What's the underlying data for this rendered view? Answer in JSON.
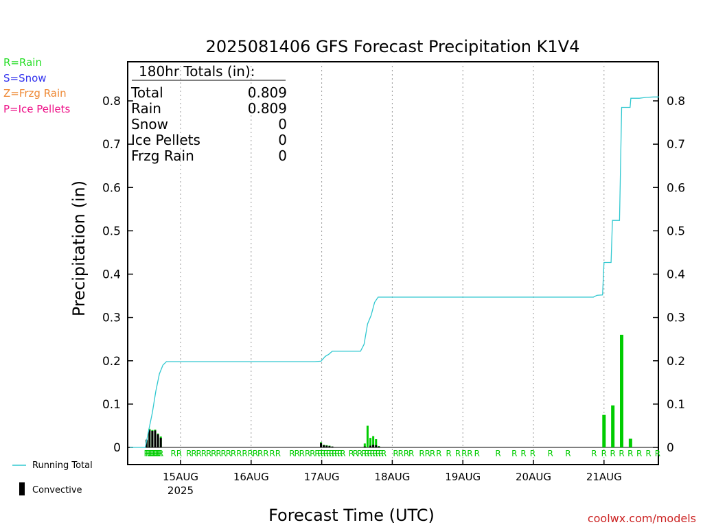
{
  "chart_data": {
    "type": "bar",
    "title": "2025081406 GFS Forecast Precipitation K1V4",
    "xlabel": "Forecast Time (UTC)",
    "ylabel": "Precipitation (in)",
    "ylim": [
      0,
      0.88
    ],
    "yticks": [
      0,
      0.1,
      0.2,
      0.3,
      0.4,
      0.5,
      0.6,
      0.7,
      0.8
    ],
    "ytick_labels": [
      "0",
      "0.1",
      "0.2",
      "0.3",
      "0.4",
      "0.5",
      "0.6",
      "0.7",
      "0.8"
    ],
    "xlim_days": [
      -0.72,
      6.78
    ],
    "day_ticks": [
      {
        "day": 0,
        "label": "15AUG",
        "sublabel": "2025"
      },
      {
        "day": 1,
        "label": "16AUG",
        "sublabel": ""
      },
      {
        "day": 2,
        "label": "17AUG",
        "sublabel": ""
      },
      {
        "day": 3,
        "label": "18AUG",
        "sublabel": ""
      },
      {
        "day": 4,
        "label": "19AUG",
        "sublabel": ""
      },
      {
        "day": 5,
        "label": "20AUG",
        "sublabel": ""
      },
      {
        "day": 6,
        "label": "21AUG",
        "sublabel": ""
      }
    ],
    "grid": "vertical dotted at day boundaries",
    "colors": {
      "running_total": "#30c8d0",
      "rain_bars": "#00cc00",
      "convective": "#000000",
      "rain_markers": "#00cc00"
    },
    "precip_bars": {
      "x_days": [
        -0.48,
        -0.44,
        -0.4,
        -0.36,
        -0.32,
        -0.28,
        1.99,
        2.03,
        2.07,
        2.11,
        2.15,
        2.61,
        2.65,
        2.69,
        2.73,
        2.77,
        2.81,
        6.0,
        6.125,
        6.25,
        6.375
      ],
      "values": [
        0.016,
        0.043,
        0.04,
        0.041,
        0.032,
        0.025,
        0.012,
        0.006,
        0.005,
        0.004,
        0.002,
        0.009,
        0.05,
        0.022,
        0.026,
        0.019,
        0.003,
        0.075,
        0.097,
        0.26,
        0.02
      ],
      "convective": [
        0.018,
        0.04,
        0.038,
        0.039,
        0.03,
        0.022,
        0.01,
        0.005,
        0.004,
        0.003,
        0.002,
        0.002,
        0.0,
        0.004,
        0.006,
        0.005,
        0.002,
        0.0,
        0.0,
        0.0,
        0.0
      ]
    },
    "running_total": {
      "x_days": [
        -0.72,
        -0.5,
        -0.45,
        -0.4,
        -0.35,
        -0.3,
        -0.25,
        -0.2,
        -0.1,
        0,
        1,
        1.9,
        1.99,
        2.05,
        2.1,
        2.15,
        2.25,
        2.35,
        2.45,
        2.55,
        2.6,
        2.65,
        2.7,
        2.75,
        2.8,
        2.85,
        3,
        4,
        5,
        5.85,
        5.9,
        5.98,
        6.0,
        6.1,
        6.12,
        6.22,
        6.25,
        6.37,
        6.38,
        6.5,
        6.6,
        6.7,
        6.78
      ],
      "values": [
        0,
        0,
        0.04,
        0.08,
        0.13,
        0.17,
        0.19,
        0.198,
        0.198,
        0.198,
        0.198,
        0.198,
        0.199,
        0.21,
        0.215,
        0.222,
        0.222,
        0.222,
        0.222,
        0.222,
        0.238,
        0.285,
        0.305,
        0.335,
        0.347,
        0.347,
        0.347,
        0.347,
        0.347,
        0.347,
        0.351,
        0.352,
        0.427,
        0.427,
        0.524,
        0.524,
        0.785,
        0.785,
        0.806,
        0.806,
        0.808,
        0.809,
        0.809
      ]
    },
    "rain_marker_days": [
      -0.48,
      -0.46,
      -0.44,
      -0.42,
      -0.4,
      -0.38,
      -0.36,
      -0.34,
      -0.32,
      -0.3,
      -0.28,
      -0.1,
      -0.02,
      0.12,
      0.19,
      0.26,
      0.33,
      0.4,
      0.47,
      0.54,
      0.61,
      0.68,
      0.75,
      0.83,
      0.91,
      0.99,
      1.06,
      1.13,
      1.21,
      1.3,
      1.38,
      1.58,
      1.65,
      1.72,
      1.8,
      1.87,
      1.94,
      1.98,
      2.02,
      2.06,
      2.1,
      2.14,
      2.18,
      2.22,
      2.26,
      2.3,
      2.42,
      2.48,
      2.54,
      2.6,
      2.64,
      2.68,
      2.72,
      2.76,
      2.8,
      2.84,
      2.88,
      3.05,
      3.12,
      3.2,
      3.27,
      3.42,
      3.5,
      3.57,
      3.66,
      3.8,
      3.93,
      4.02,
      4.1,
      4.2,
      4.5,
      4.73,
      4.86,
      4.99,
      5.24,
      5.49,
      5.86,
      6.0,
      6.125,
      6.25,
      6.375,
      6.5,
      6.63,
      6.76
    ],
    "rain_marker_label": "R",
    "totals_box": {
      "header": "180hr Totals (in):",
      "rows": [
        {
          "label": "Total",
          "value": "0.809"
        },
        {
          "label": "Rain",
          "value": "0.809"
        },
        {
          "label": "Snow",
          "value": "0"
        },
        {
          "label": "Ice Pellets",
          "value": "0"
        },
        {
          "label": "Frzg Rain",
          "value": "0"
        }
      ]
    }
  },
  "legend_ptypes": [
    {
      "text": "R=Rain",
      "color": "#22dd22"
    },
    {
      "text": "S=Snow",
      "color": "#3333ee"
    },
    {
      "text": "Z=Frzg Rain",
      "color": "#ee8833"
    },
    {
      "text": "P=Ice Pellets",
      "color": "#ee1188"
    }
  ],
  "legend_bottom": {
    "running_total": "Running Total",
    "convective": "Convective"
  },
  "credit": "coolwx.com/models",
  "credit_color": "#cc2222"
}
